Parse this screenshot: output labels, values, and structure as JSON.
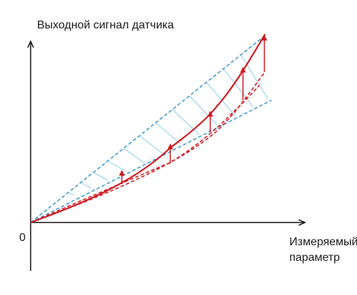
{
  "labels": {
    "y_axis": "Выходной сигнал датчика",
    "origin": "0",
    "x_axis_line1": "Измеряемый",
    "x_axis_line2": "параметр"
  },
  "colors": {
    "axis": "#111111",
    "blue_dashed": "#3b96cf",
    "hatch": "#8ccbe8",
    "red_curve": "#d11b23",
    "red_dashed": "#d11b23",
    "arrow": "#d11b23"
  },
  "icons": {
    "x_axis_arrow": "arrow-right-icon",
    "y_axis_arrow": "arrow-up-icon",
    "shift_arrows": "arrow-up-icon"
  }
}
